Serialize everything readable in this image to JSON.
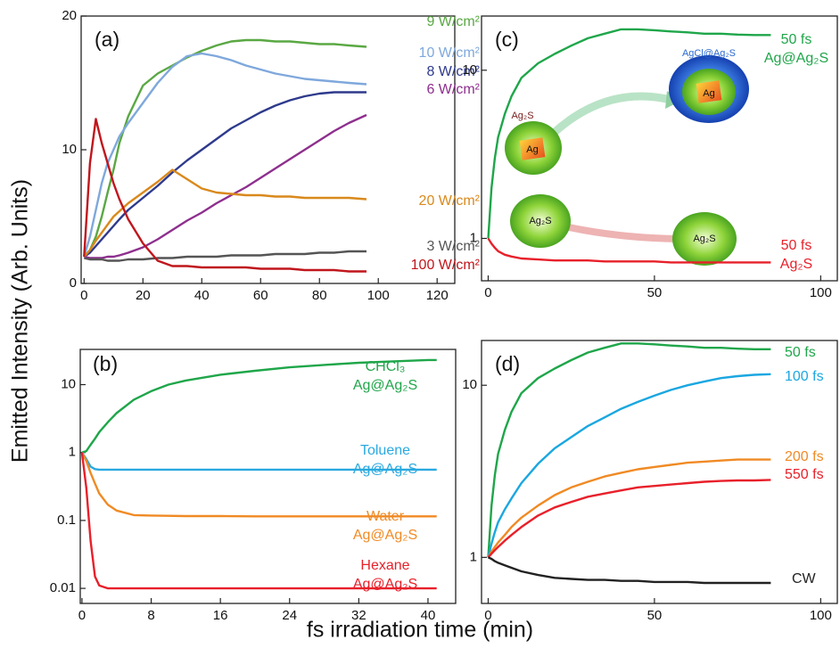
{
  "figure": {
    "ylabel": "Emitted Intensity (Arb. Units)",
    "xlabel": "fs irradiation time (min)"
  },
  "chart_data": [
    {
      "type": "line",
      "panel": "(a)",
      "log": false,
      "xlim": [
        -1,
        126
      ],
      "ylim": [
        0,
        20
      ],
      "xticks": [
        0,
        20,
        40,
        60,
        80,
        100,
        120
      ],
      "yticks": [
        0,
        10,
        20
      ],
      "x": [
        0,
        2,
        4,
        6,
        8,
        10,
        12,
        15,
        20,
        25,
        30,
        35,
        40,
        45,
        50,
        55,
        60,
        65,
        70,
        75,
        80,
        85,
        90,
        96
      ],
      "series": [
        {
          "name": [
            "9 W/cm²"
          ],
          "color": "#5aa843",
          "values": [
            2,
            2.5,
            3.5,
            5,
            6.8,
            8.5,
            10.5,
            12.5,
            14.8,
            15.7,
            16.3,
            16.9,
            17.4,
            17.8,
            18.1,
            18.2,
            18.2,
            18.1,
            18.1,
            18,
            17.9,
            17.9,
            17.8,
            17.7
          ]
        },
        {
          "name": [
            "10 W/cm²"
          ],
          "color": "#7fa8dc",
          "values": [
            2,
            3.5,
            5.5,
            7.5,
            9,
            10,
            11,
            12,
            13.5,
            15,
            16.2,
            17,
            17.2,
            17,
            16.7,
            16.3,
            16,
            15.7,
            15.5,
            15.3,
            15.2,
            15.1,
            15,
            14.9
          ]
        },
        {
          "name": [
            "8 W/cm²"
          ],
          "color": "#2e3a8c",
          "values": [
            2,
            2.3,
            2.8,
            3.3,
            3.8,
            4.3,
            4.8,
            5.5,
            6.4,
            7.3,
            8.3,
            9.2,
            10,
            10.8,
            11.6,
            12.2,
            12.8,
            13.3,
            13.7,
            14,
            14.2,
            14.3,
            14.3,
            14.3
          ]
        },
        {
          "name": [
            "6 W/cm²"
          ],
          "color": "#8e2f8e",
          "values": [
            2,
            1.9,
            1.9,
            1.9,
            2,
            2,
            2.1,
            2.3,
            2.7,
            3.3,
            4,
            4.7,
            5.3,
            6,
            6.6,
            7.2,
            7.9,
            8.6,
            9.3,
            10,
            10.7,
            11.4,
            12,
            12.6
          ]
        },
        {
          "name": [
            "20 W/cm²"
          ],
          "color": "#d9891c",
          "values": [
            2,
            2.5,
            3.2,
            3.8,
            4.4,
            5,
            5.4,
            6,
            6.8,
            7.6,
            8.5,
            7.8,
            7.1,
            6.8,
            6.7,
            6.6,
            6.6,
            6.5,
            6.5,
            6.4,
            6.4,
            6.4,
            6.4,
            6.3
          ]
        },
        {
          "name": [
            "3 W/cm²"
          ],
          "color": "#555555",
          "values": [
            1.9,
            1.8,
            1.8,
            1.8,
            1.7,
            1.7,
            1.7,
            1.8,
            1.8,
            1.9,
            1.9,
            2,
            2,
            2,
            2.1,
            2.1,
            2.1,
            2.2,
            2.2,
            2.2,
            2.3,
            2.3,
            2.4,
            2.4
          ]
        },
        {
          "name": [
            "100 W/cm²"
          ],
          "color": "#c0161c",
          "values": [
            2,
            9,
            12.3,
            10.5,
            9,
            7.5,
            6.3,
            4.8,
            3,
            1.7,
            1.3,
            1.3,
            1.2,
            1.2,
            1.2,
            1.2,
            1.1,
            1.1,
            1.1,
            1,
            1,
            1,
            0.9,
            0.9
          ]
        }
      ]
    },
    {
      "type": "line",
      "panel": "(b)",
      "log": true,
      "xlim": [
        -0.2,
        43.2
      ],
      "ylim": [
        0.006,
        33
      ],
      "xticks": [
        0,
        8,
        16,
        24,
        32,
        40
      ],
      "yticks": [
        0.01,
        0.1,
        1,
        10
      ],
      "x": [
        0,
        0.5,
        1,
        1.5,
        2,
        3,
        4,
        6,
        8,
        10,
        12,
        16,
        20,
        24,
        28,
        32,
        36,
        40,
        41
      ],
      "series": [
        {
          "name": [
            "CHCl₃",
            "Ag@Ag₂S"
          ],
          "color": "#1fa64a",
          "values": [
            1,
            1.05,
            1.3,
            1.6,
            2,
            2.8,
            3.8,
            6,
            8,
            10,
            11.5,
            14,
            16,
            18,
            19.5,
            21,
            22,
            23,
            23
          ]
        },
        {
          "name": [
            "Toluene",
            "Ag@Ag₂S"
          ],
          "color": "#29a9e0",
          "values": [
            1,
            0.8,
            0.62,
            0.57,
            0.56,
            0.56,
            0.56,
            0.56,
            0.56,
            0.56,
            0.56,
            0.56,
            0.56,
            0.56,
            0.56,
            0.56,
            0.56,
            0.56,
            0.56
          ]
        },
        {
          "name": [
            "Water",
            "Ag@Ag₂S"
          ],
          "color": "#f08a24",
          "values": [
            1,
            0.75,
            0.5,
            0.35,
            0.25,
            0.17,
            0.14,
            0.12,
            0.118,
            0.117,
            0.116,
            0.116,
            0.115,
            0.115,
            0.115,
            0.115,
            0.115,
            0.115,
            0.115
          ]
        },
        {
          "name": [
            "Hexane",
            "Ag@Ag₂S"
          ],
          "color": "#e8202a",
          "values": [
            1,
            0.3,
            0.05,
            0.015,
            0.011,
            0.01,
            0.01,
            0.01,
            0.01,
            0.01,
            0.01,
            0.01,
            0.01,
            0.01,
            0.01,
            0.01,
            0.01,
            0.01,
            0.01
          ]
        }
      ]
    },
    {
      "type": "line",
      "panel": "(c)",
      "log": true,
      "xlim": [
        -2,
        105
      ],
      "ylim": [
        0.56,
        21
      ],
      "xticks": [
        0,
        50,
        100
      ],
      "yticks": [
        1,
        10
      ],
      "x": [
        0,
        1,
        2,
        3,
        5,
        7,
        10,
        15,
        20,
        25,
        30,
        35,
        40,
        45,
        50,
        55,
        60,
        65,
        70,
        75,
        80,
        85
      ],
      "inset_labels": [
        "Ag₂S",
        "Ag",
        "AgCl@Ag₂S",
        "Ag",
        "Ag₂S",
        "Ag₂S"
      ],
      "series": [
        {
          "name": [
            "50 fs",
            "Ag@Ag₂S"
          ],
          "color": "#1fa64a",
          "values": [
            1,
            2,
            3,
            4,
            5.5,
            7,
            9,
            11,
            12.5,
            14,
            15.5,
            16.5,
            17.5,
            17.5,
            17.3,
            17,
            16.8,
            16.5,
            16.5,
            16.3,
            16.2,
            16.2
          ]
        },
        {
          "name": [
            "50 fs",
            "Ag₂S"
          ],
          "color": "#e8202a",
          "values": [
            1,
            0.93,
            0.88,
            0.84,
            0.8,
            0.78,
            0.76,
            0.75,
            0.74,
            0.74,
            0.74,
            0.73,
            0.73,
            0.73,
            0.73,
            0.72,
            0.72,
            0.72,
            0.72,
            0.72,
            0.72,
            0.72
          ]
        }
      ]
    },
    {
      "type": "line",
      "panel": "(d)",
      "log": true,
      "xlim": [
        -2,
        105
      ],
      "ylim": [
        0.54,
        18.2
      ],
      "xticks": [
        0,
        50,
        100
      ],
      "yticks": [
        1,
        10
      ],
      "x": [
        0,
        1,
        2,
        3,
        5,
        7,
        10,
        15,
        20,
        25,
        30,
        35,
        40,
        45,
        50,
        55,
        60,
        65,
        70,
        75,
        80,
        85
      ],
      "series": [
        {
          "name": [
            "50 fs"
          ],
          "color": "#1fa64a",
          "values": [
            1,
            2,
            3,
            4,
            5.5,
            7,
            9,
            11,
            12.5,
            14,
            15.5,
            16.5,
            17.5,
            17.5,
            17.3,
            17,
            16.8,
            16.5,
            16.5,
            16.3,
            16.2,
            16.2
          ]
        },
        {
          "name": [
            "100 fs"
          ],
          "color": "#1aa7e0",
          "values": [
            1,
            1.2,
            1.4,
            1.6,
            1.9,
            2.2,
            2.7,
            3.5,
            4.3,
            5,
            5.8,
            6.5,
            7.3,
            8,
            8.7,
            9.4,
            10,
            10.5,
            11,
            11.3,
            11.5,
            11.6
          ]
        },
        {
          "name": [
            "200 fs"
          ],
          "color": "#f08a24",
          "values": [
            1,
            1.08,
            1.15,
            1.22,
            1.35,
            1.5,
            1.7,
            2,
            2.3,
            2.55,
            2.75,
            2.95,
            3.1,
            3.25,
            3.35,
            3.45,
            3.55,
            3.6,
            3.65,
            3.7,
            3.7,
            3.7
          ]
        },
        {
          "name": [
            "550 fs"
          ],
          "color": "#e8202a",
          "values": [
            1,
            1.05,
            1.1,
            1.15,
            1.25,
            1.35,
            1.5,
            1.75,
            1.95,
            2.1,
            2.25,
            2.35,
            2.45,
            2.55,
            2.6,
            2.65,
            2.7,
            2.75,
            2.78,
            2.8,
            2.8,
            2.82
          ]
        },
        {
          "name": [
            "CW"
          ],
          "color": "#222222",
          "values": [
            1,
            0.98,
            0.95,
            0.93,
            0.9,
            0.87,
            0.83,
            0.79,
            0.76,
            0.75,
            0.74,
            0.74,
            0.73,
            0.73,
            0.72,
            0.72,
            0.72,
            0.71,
            0.71,
            0.71,
            0.71,
            0.71
          ]
        }
      ]
    }
  ]
}
